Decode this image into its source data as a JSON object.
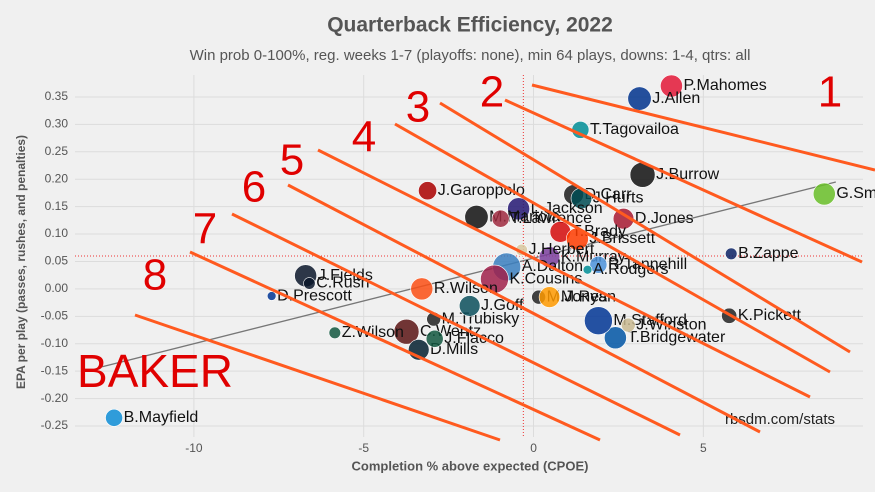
{
  "chart_data": {
    "type": "scatter",
    "title": "Quarterback Efficiency, 2022",
    "subtitle": "Win prob 0-100%, reg. weeks 1-7 (playoffs: none), min 64 plays, downs: 1-4, qtrs: all",
    "x_label": "Completion % above expected (CPOE)",
    "y_label": "EPA per play (passes, rushes, and penalties)",
    "source": "rbsdm.com/stats",
    "annotations": [
      "1",
      "2",
      "3",
      "4",
      "5",
      "6",
      "7",
      "8",
      "BAKER"
    ],
    "xlim": [
      -13.5,
      9.7
    ],
    "ylim": [
      -0.27,
      0.39
    ],
    "xticks": [
      -10,
      -5,
      0,
      5
    ],
    "yticks": [
      {
        "value": -0.25,
        "label": "-0.25"
      },
      {
        "value": -0.2,
        "label": "-0.20"
      },
      -0.15,
      {
        "value": -0.1,
        "label": "-0.10"
      },
      -0.05,
      {
        "value": 0,
        "label": "0.00"
      },
      0.05,
      {
        "value": 0.1,
        "label": "0.10"
      },
      0.15,
      {
        "value": 0.2,
        "label": "0.20"
      },
      0.25,
      {
        "value": 0.3,
        "label": "0.30"
      },
      0.35
    ],
    "grid": true,
    "reference_lines": {
      "x": -0.3,
      "y": 0.06
    },
    "trend_line": {
      "x": [
        -12.7,
        8.9
      ],
      "y": [
        -0.142,
        0.195
      ]
    },
    "series": [
      {
        "names": [
          "P.Mahomes",
          "J.Allen",
          "T.Tagovailoa",
          "J.Burrow",
          "D.Carr",
          "J.Hurts",
          "G.Smith",
          "J.Garoppolo",
          "L.Jackson",
          "M.Mariota",
          "T.Lawrence",
          "D.Jones",
          "T.Brady",
          "J.Brissett",
          "K.Murray",
          "J.Herbert",
          "A.Dalton",
          "K.Cousins",
          "B.Zappe",
          "R.Tannehill",
          "A.Rodgers",
          "T.Bridgewater",
          "J.Fields",
          "R.Wilson",
          "C.Rush",
          "D.Prescott",
          "M.Trubisky",
          "C.Wentz",
          "D.Mills",
          "J.Flacco",
          "J.Goff",
          "M.Jones",
          "M.Ryan",
          "M.Stafford",
          "J.Winston",
          "K.Pickett",
          "Z.Wilson",
          "B.Mayfield"
        ],
        "x": [
          4.06,
          3.12,
          1.38,
          3.21,
          1.18,
          1.41,
          8.56,
          -3.12,
          -0.44,
          -1.68,
          -0.97,
          2.65,
          0.79,
          1.29,
          0.47,
          -0.35,
          -0.79,
          -1.15,
          5.82,
          1.91,
          1.59,
          2.41,
          -6.71,
          -3.29,
          -6.6,
          -7.71,
          -2.94,
          -3.74,
          -3.38,
          -2.91,
          -1.88,
          0.15,
          0.47,
          1.91,
          2.79,
          5.76,
          -5.85,
          -12.35
        ],
        "values": [
          0.37,
          0.347,
          0.29,
          0.208,
          0.172,
          0.165,
          0.173,
          0.179,
          0.146,
          0.131,
          0.128,
          0.128,
          0.104,
          0.091,
          0.058,
          0.071,
          0.04,
          0.018,
          0.064,
          0.044,
          0.035,
          -0.089,
          0.024,
          0,
          0.01,
          -0.013,
          -0.055,
          -0.078,
          -0.111,
          -0.091,
          -0.031,
          -0.015,
          -0.015,
          -0.058,
          -0.066,
          -0.049,
          -0.08,
          -0.235
        ],
        "sizes": [
          250,
          280,
          150,
          320,
          200,
          220,
          250,
          170,
          250,
          280,
          150,
          220,
          220,
          250,
          220,
          70,
          400,
          400,
          70,
          150,
          40,
          250,
          250,
          250,
          70,
          40,
          100,
          320,
          220,
          150,
          220,
          100,
          220,
          400,
          100,
          120,
          70,
          150
        ],
        "colors": [
          "#e31837",
          "#00338d",
          "#008e97",
          "#111111",
          "#1b1b1b",
          "#004c54",
          "#69be28",
          "#aa0000",
          "#241773",
          "#111111",
          "#9f2a40",
          "#a71930",
          "#d50a0a",
          "#ff3c00",
          "#7b3f9e",
          "#d8c8a0",
          "#3a7fbf",
          "#a0204a",
          "#0b2265",
          "#4b92db",
          "#008e97",
          "#0055a5",
          "#0b162a",
          "#fb4f14",
          "#0b162a",
          "#003594",
          "#222222",
          "#5a1414",
          "#03202f",
          "#125740",
          "#0b4f5c",
          "#222222",
          "#ff9a00",
          "#003594",
          "#c8b890",
          "#222222",
          "#125740",
          "#0d8dd6"
        ]
      }
    ]
  }
}
